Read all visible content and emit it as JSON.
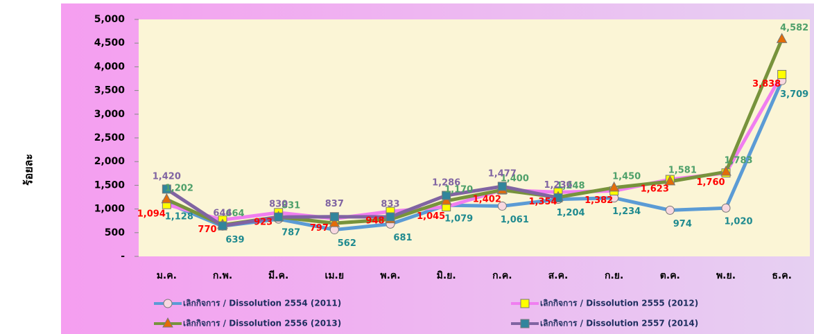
{
  "chart_data": {
    "type": "line",
    "y_label": "ร้อยละ",
    "categories": [
      "ม.ค.",
      "ก.พ.",
      "มี.ค.",
      "เม.ย",
      "พ.ค.",
      "มิ.ย.",
      "ก.ค.",
      "ส.ค.",
      "ก.ย.",
      "ต.ค.",
      "พ.ย.",
      "ธ.ค."
    ],
    "ylim": [
      0,
      5000
    ],
    "yticks": [
      {
        "value": 0,
        "label": "-"
      },
      500,
      {
        "value": 1000,
        "label": "1,000"
      },
      {
        "value": 1500,
        "label": "1,500"
      },
      {
        "value": 2000,
        "label": "2,000"
      },
      {
        "value": 2500,
        "label": "2,500"
      },
      {
        "value": 3000,
        "label": "3,000"
      },
      {
        "value": 3500,
        "label": "3,500"
      },
      {
        "value": 4000,
        "label": "4,000"
      },
      {
        "value": 4500,
        "label": "4,500"
      },
      {
        "value": 5000,
        "label": "5,000"
      }
    ],
    "series": [
      {
        "name": "เลิกกิจการ / Dissolution 2554 (2011)",
        "color": "#5b9bd5",
        "marker": "circle",
        "marker_color": "#f8d8e0",
        "label_color": "#1f8a8f",
        "values": [
          1128,
          639,
          787,
          562,
          681,
          1079,
          1061,
          1204,
          1234,
          974,
          1020,
          3709
        ],
        "value_labels": [
          "1,128",
          "639",
          "787",
          "562",
          "681",
          "1,079",
          "1,061",
          "1,204",
          "1,234",
          "974",
          "1,020",
          "3,709"
        ]
      },
      {
        "name": "เลิกกิจการ / Dissolution 2555 (2012)",
        "color": "#f07ef0",
        "marker": "square",
        "marker_color": "#ffff00",
        "label_color": "#ff0000",
        "values": [
          1094,
          770,
          923,
          797,
          948,
          1045,
          1402,
          1354,
          1382,
          1623,
          1760,
          3838
        ],
        "value_labels": [
          "1,094",
          "770",
          "923",
          "797",
          "948",
          "1,045",
          "1,402",
          "1,354",
          "1,382",
          "1,623",
          "1,760",
          "3,838"
        ]
      },
      {
        "name": "เลิกกิจการ / Dissolution 2556 (2013)",
        "color": "#77933c",
        "marker": "triangle",
        "marker_color": "#e36c09",
        "label_color": "#4ea06a",
        "values": [
          1202,
          664,
          831,
          700,
          780,
          1170,
          1400,
          1248,
          1450,
          1581,
          1783,
          4582
        ],
        "value_labels": [
          "1,202",
          "664",
          "831",
          null,
          null,
          "1,170",
          "1,400",
          "1,248",
          "1,450",
          "1,581",
          "1,783",
          "4,582"
        ]
      },
      {
        "name": "เลิกกิจการ / Dissolution 2557 (2014)",
        "color": "#8064a2",
        "marker": "square",
        "marker_color": "#31859c",
        "label_color": "#8064a2",
        "values": [
          1420,
          644,
          830,
          837,
          833,
          1286,
          1477,
          1236,
          null,
          null,
          null,
          null
        ],
        "value_labels": [
          "1,420",
          "644",
          "830",
          "837",
          "833",
          "1,286",
          "1,477",
          "1,236",
          null,
          null,
          null,
          null
        ]
      }
    ]
  }
}
